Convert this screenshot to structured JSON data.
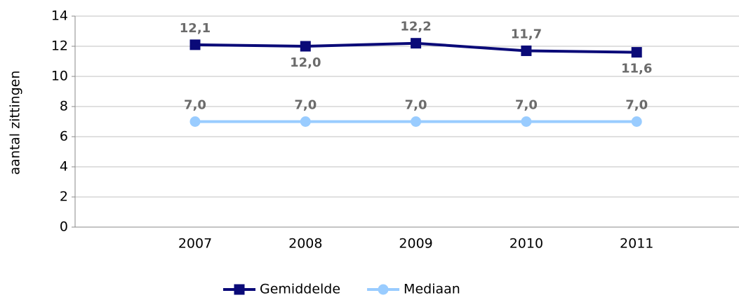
{
  "chart_data": {
    "type": "line",
    "y_label": "aantal zittingen",
    "categories": [
      "2007",
      "2008",
      "2009",
      "2010",
      "2011"
    ],
    "series": [
      {
        "name": "Gemiddelde",
        "color": "#0a0a78",
        "marker": "square",
        "values": [
          12.1,
          12.0,
          12.2,
          11.7,
          11.6
        ],
        "value_labels": [
          "12,1",
          "12,0",
          "12,2",
          "11,7",
          "11,6"
        ]
      },
      {
        "name": "Mediaan",
        "color": "#99ccff",
        "marker": "circle",
        "values": [
          7.0,
          7.0,
          7.0,
          7.0,
          7.0
        ],
        "value_labels": [
          "7,0",
          "7,0",
          "7,0",
          "7,0",
          "7,0"
        ]
      }
    ],
    "ylim": [
      0,
      14
    ],
    "yticks": [
      0,
      2,
      4,
      6,
      8,
      10,
      12,
      14
    ],
    "grid": true,
    "legend": "bottom"
  }
}
